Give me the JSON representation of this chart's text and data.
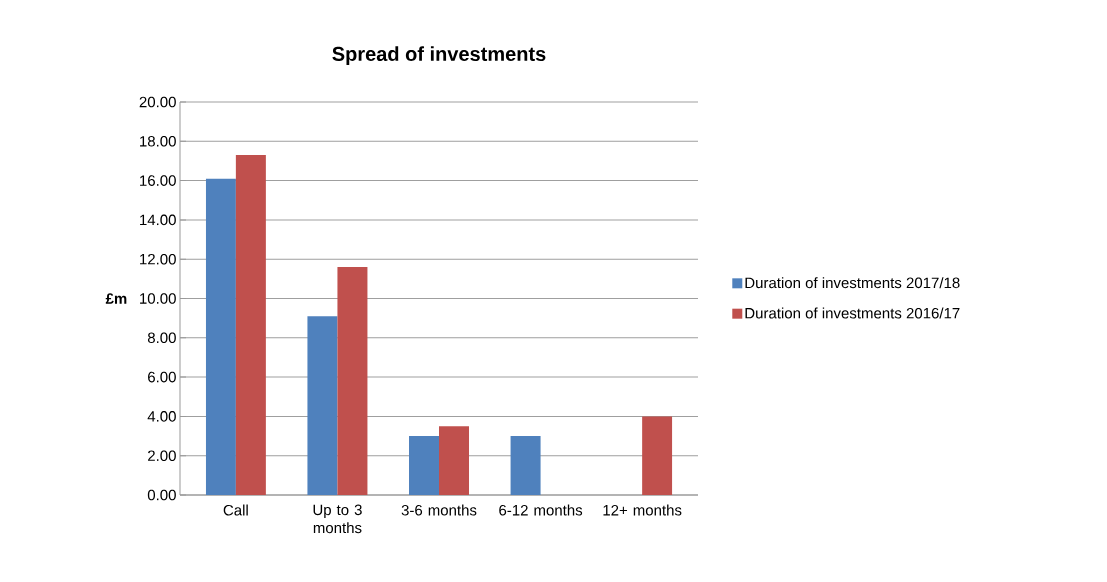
{
  "chart_data": {
    "type": "bar",
    "title": "Spread of investments",
    "ylabel": "£m",
    "categories": [
      "Call",
      "Up to 3 months",
      "3-6 months",
      "6-12 months",
      "12+ months"
    ],
    "series": [
      {
        "name": "Duration of investments 2017/18",
        "color": "#4f81bd",
        "values": [
          16.1,
          9.1,
          3.0,
          3.0,
          null
        ]
      },
      {
        "name": "Duration of investments 2016/17",
        "color": "#c0504d",
        "values": [
          17.3,
          11.6,
          3.5,
          null,
          4.0
        ]
      }
    ],
    "ylim": [
      0,
      20
    ],
    "yticks": [
      {
        "value": 0,
        "label": "0.00"
      },
      {
        "value": 2,
        "label": "2.00"
      },
      {
        "value": 4,
        "label": "4.00"
      },
      {
        "value": 6,
        "label": "6.00"
      },
      {
        "value": 8,
        "label": "8.00"
      },
      {
        "value": 10,
        "label": "10.00"
      },
      {
        "value": 12,
        "label": "12.00"
      },
      {
        "value": 14,
        "label": "14.00"
      },
      {
        "value": 16,
        "label": "16.00"
      },
      {
        "value": 18,
        "label": "18.00"
      },
      {
        "value": 20,
        "label": "20.00"
      }
    ],
    "grid": "y",
    "legend": "right"
  }
}
